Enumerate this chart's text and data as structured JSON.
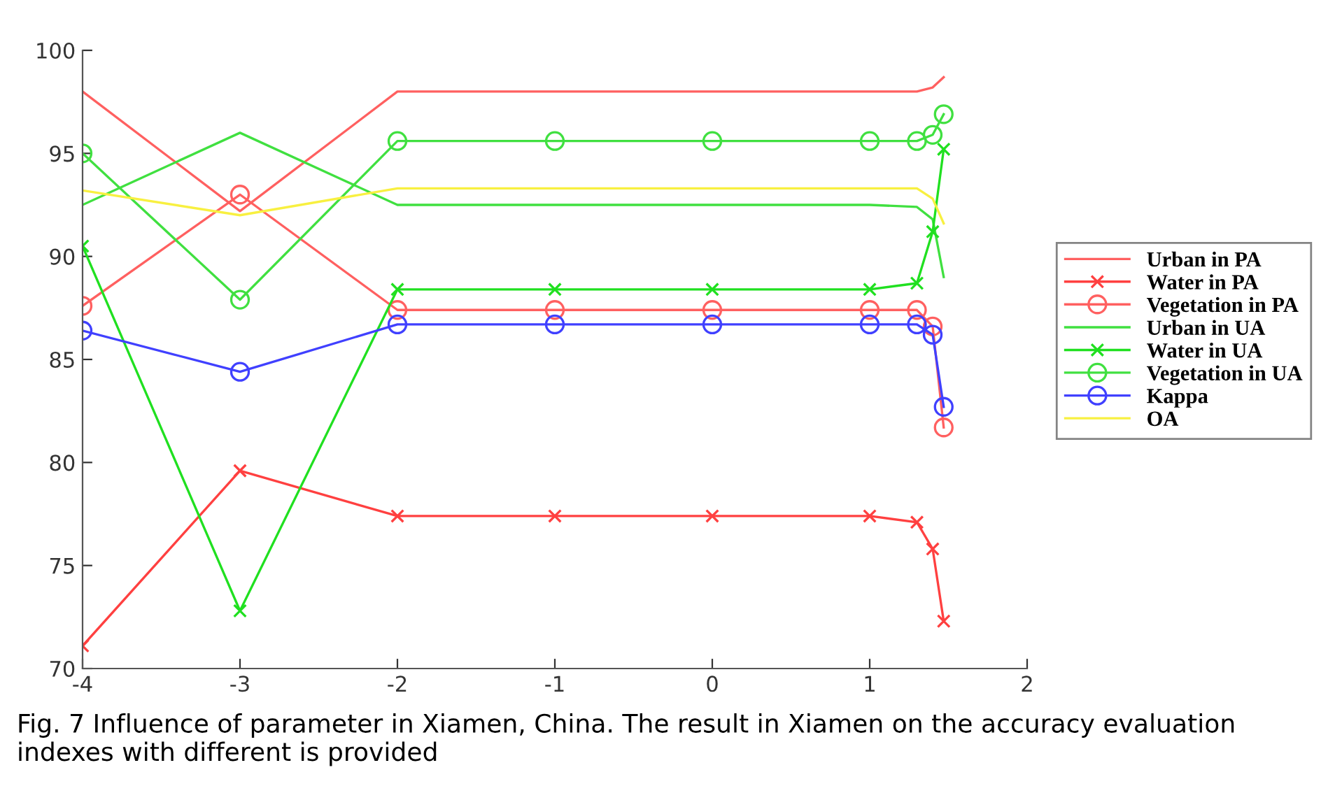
{
  "chart_data": {
    "type": "line",
    "x": [
      -4,
      -3,
      -2,
      -1,
      0,
      1,
      1.3,
      1.4,
      1.47
    ],
    "series": [
      {
        "name": "Urban in PA",
        "color": "#ff6060",
        "marker": "none",
        "values": [
          98.0,
          92.2,
          98.0,
          98.0,
          98.0,
          98.0,
          98.0,
          98.2,
          98.7
        ]
      },
      {
        "name": "Water in PA",
        "color": "#ff4040",
        "marker": "cross",
        "values": [
          71.1,
          79.6,
          77.4,
          77.4,
          77.4,
          77.4,
          77.1,
          75.8,
          72.3
        ]
      },
      {
        "name": "Vegetation in PA",
        "color": "#ff6060",
        "marker": "circle",
        "values": [
          87.6,
          93.0,
          87.4,
          87.4,
          87.4,
          87.4,
          87.4,
          86.6,
          81.7
        ]
      },
      {
        "name": "Urban in UA",
        "color": "#40e040",
        "marker": "none",
        "values": [
          92.5,
          96.0,
          92.5,
          92.5,
          92.5,
          92.5,
          92.4,
          91.8,
          89.0
        ]
      },
      {
        "name": "Water in UA",
        "color": "#20e020",
        "marker": "cross",
        "values": [
          90.5,
          72.8,
          88.4,
          88.4,
          88.4,
          88.4,
          88.7,
          91.2,
          95.2
        ]
      },
      {
        "name": "Vegetation in UA",
        "color": "#40e040",
        "marker": "circle",
        "values": [
          95.0,
          87.9,
          95.6,
          95.6,
          95.6,
          95.6,
          95.6,
          95.9,
          96.9
        ]
      },
      {
        "name": "Kappa",
        "color": "#4040ff",
        "marker": "circle",
        "values": [
          86.4,
          84.4,
          86.7,
          86.7,
          86.7,
          86.7,
          86.7,
          86.2,
          82.7
        ]
      },
      {
        "name": "OA",
        "color": "#f8f040",
        "marker": "none",
        "values": [
          93.2,
          92.0,
          93.3,
          93.3,
          93.3,
          93.3,
          93.3,
          92.8,
          91.6
        ]
      }
    ],
    "xlim": [
      -4,
      2
    ],
    "xticks": [
      -4,
      -3,
      -2,
      -1,
      0,
      1,
      2
    ],
    "ylim": [
      70,
      100
    ],
    "yticks": [
      70,
      75,
      80,
      85,
      90,
      95,
      100
    ],
    "grid": false,
    "legend": "right",
    "annotations": [
      "Fig. 7 Influence of parameter in Xiamen, China. The result in Xiamen on the accuracy evaluation indexes with different is provided"
    ]
  }
}
